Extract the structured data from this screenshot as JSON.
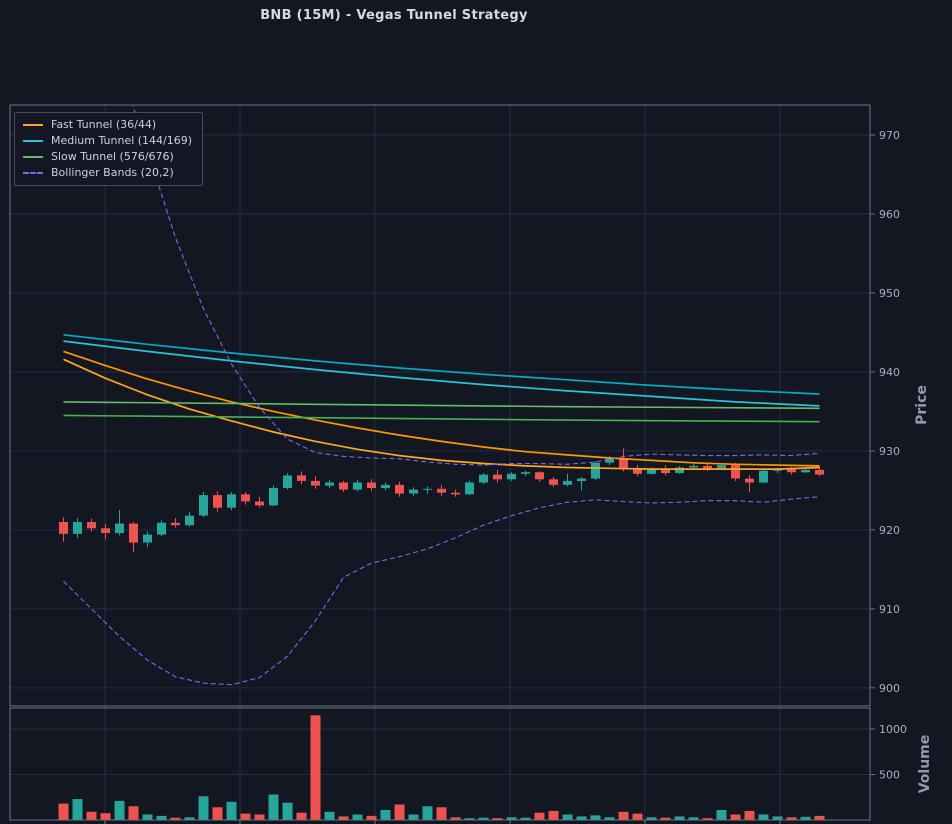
{
  "title": "BNB (15M) - Vegas Tunnel Strategy",
  "colors": {
    "background": "#131722",
    "up": "#26a69a",
    "down": "#ef5350",
    "grid": "#232c3d",
    "frame": "#6e7482",
    "tick_text": "#a9aeba",
    "title_text": "#d6dae4",
    "axis_title": "#939aab"
  },
  "legend": {
    "items": [
      {
        "label": "Fast Tunnel (36/44)",
        "color": "#ffa726",
        "dashed": false
      },
      {
        "label": "Medium Tunnel (144/169)",
        "color": "#26c6da",
        "dashed": false
      },
      {
        "label": "Slow Tunnel (576/676)",
        "color": "#66bb6a",
        "dashed": false
      },
      {
        "label": "Bollinger Bands (20,2)",
        "color": "#7c67e8",
        "dashed": true
      }
    ]
  },
  "axes": {
    "price": {
      "label": "Price",
      "ticks": [
        900,
        910,
        920,
        930,
        940,
        950,
        960,
        970
      ],
      "range": [
        897.7,
        973.8
      ]
    },
    "volume": {
      "label": "Volume",
      "ticks": [
        500,
        1000
      ],
      "range": [
        0,
        1230
      ]
    }
  },
  "chart_data": {
    "type": "candlestick",
    "title": "BNB (15M) - Vegas Tunnel Strategy",
    "symbol": "BNB",
    "interval": "15M",
    "panels": [
      "price",
      "volume"
    ],
    "x_count": 55,
    "candles": [
      [
        921.0,
        921.6,
        918.5,
        919.5
      ],
      [
        919.5,
        921.5,
        919.0,
        921.0
      ],
      [
        921.0,
        921.4,
        919.8,
        920.2
      ],
      [
        920.2,
        920.8,
        918.8,
        919.6
      ],
      [
        919.6,
        922.5,
        919.3,
        920.8
      ],
      [
        920.8,
        921.0,
        917.2,
        918.4
      ],
      [
        918.4,
        919.8,
        917.8,
        919.4
      ],
      [
        919.4,
        921.2,
        919.2,
        920.9
      ],
      [
        920.9,
        921.5,
        920.3,
        920.6
      ],
      [
        920.6,
        922.3,
        920.4,
        921.8
      ],
      [
        921.8,
        924.8,
        921.6,
        924.4
      ],
      [
        924.4,
        924.9,
        922.3,
        922.8
      ],
      [
        922.8,
        924.8,
        922.5,
        924.5
      ],
      [
        924.5,
        924.8,
        923.2,
        923.6
      ],
      [
        923.6,
        924.2,
        922.8,
        923.1
      ],
      [
        923.1,
        925.6,
        923.0,
        925.3
      ],
      [
        925.3,
        927.2,
        925.1,
        926.9
      ],
      [
        926.9,
        927.4,
        925.8,
        926.2
      ],
      [
        926.2,
        926.8,
        925.2,
        925.6
      ],
      [
        925.6,
        926.3,
        925.3,
        926.0
      ],
      [
        926.0,
        926.2,
        924.8,
        925.1
      ],
      [
        925.1,
        926.3,
        924.9,
        926.0
      ],
      [
        926.0,
        926.4,
        924.9,
        925.3
      ],
      [
        925.3,
        926.0,
        925.0,
        925.7
      ],
      [
        925.7,
        926.1,
        924.2,
        924.6
      ],
      [
        924.6,
        925.4,
        924.3,
        925.1
      ],
      [
        925.1,
        925.5,
        924.6,
        925.2
      ],
      [
        925.2,
        925.7,
        924.3,
        924.7
      ],
      [
        924.7,
        925.1,
        924.2,
        924.5
      ],
      [
        924.5,
        926.2,
        924.4,
        926.0
      ],
      [
        926.0,
        927.2,
        925.8,
        927.0
      ],
      [
        927.0,
        927.6,
        926.0,
        926.4
      ],
      [
        926.4,
        927.3,
        926.2,
        927.1
      ],
      [
        927.1,
        927.5,
        926.8,
        927.3
      ],
      [
        927.3,
        927.4,
        926.1,
        926.4
      ],
      [
        926.4,
        926.7,
        925.4,
        925.7
      ],
      [
        925.7,
        927.1,
        925.5,
        926.2
      ],
      [
        926.2,
        926.7,
        925.0,
        926.5
      ],
      [
        926.5,
        928.7,
        926.3,
        928.5
      ],
      [
        928.5,
        929.3,
        928.2,
        929.0
      ],
      [
        929.0,
        930.3,
        927.4,
        927.7
      ],
      [
        927.7,
        928.2,
        926.8,
        927.1
      ],
      [
        927.1,
        927.9,
        927.0,
        927.6
      ],
      [
        927.6,
        928.2,
        926.9,
        927.2
      ],
      [
        927.2,
        928.1,
        927.1,
        927.9
      ],
      [
        927.9,
        928.4,
        927.6,
        928.1
      ],
      [
        928.1,
        928.5,
        927.5,
        927.8
      ],
      [
        927.8,
        928.4,
        927.6,
        928.2
      ],
      [
        928.2,
        928.5,
        926.2,
        926.5
      ],
      [
        926.5,
        926.9,
        924.8,
        926.0
      ],
      [
        926.0,
        927.7,
        925.9,
        927.5
      ],
      [
        927.5,
        927.9,
        927.2,
        927.7
      ],
      [
        927.7,
        928.0,
        927.0,
        927.3
      ],
      [
        927.3,
        927.9,
        927.2,
        927.6
      ],
      [
        927.6,
        928.0,
        926.8,
        927.0
      ]
    ],
    "volumes": [
      180,
      230,
      90,
      75,
      210,
      150,
      60,
      45,
      25,
      30,
      260,
      140,
      200,
      70,
      60,
      280,
      190,
      80,
      1150,
      90,
      40,
      60,
      45,
      110,
      170,
      60,
      150,
      140,
      30,
      20,
      25,
      20,
      30,
      25,
      80,
      100,
      60,
      40,
      50,
      30,
      90,
      70,
      30,
      25,
      40,
      30,
      20,
      110,
      60,
      100,
      60,
      40,
      30,
      35,
      45
    ],
    "series": [
      {
        "id": "fast-tunnel-ema36",
        "name": "Fast Tunnel EMA 36",
        "color": "#ffa726",
        "width": 1.7,
        "dashed": false,
        "points": [
          [
            0,
            941.6
          ],
          [
            3,
            939.2
          ],
          [
            6,
            937.1
          ],
          [
            9,
            935.3
          ],
          [
            12,
            933.8
          ],
          [
            15,
            932.4
          ],
          [
            18,
            931.2
          ],
          [
            21,
            930.2
          ],
          [
            24,
            929.4
          ],
          [
            27,
            928.8
          ],
          [
            30,
            928.4
          ],
          [
            33,
            928.1
          ],
          [
            36,
            927.9
          ],
          [
            39,
            927.8
          ],
          [
            42,
            927.7
          ],
          [
            45,
            927.7
          ],
          [
            48,
            927.7
          ],
          [
            51,
            927.7
          ],
          [
            54,
            927.9
          ]
        ]
      },
      {
        "id": "fast-tunnel-ema44",
        "name": "Fast Tunnel EMA 44",
        "color": "#ff9800",
        "width": 1.7,
        "dashed": false,
        "points": [
          [
            0,
            942.6
          ],
          [
            3,
            940.8
          ],
          [
            6,
            939.1
          ],
          [
            9,
            937.6
          ],
          [
            12,
            936.2
          ],
          [
            15,
            935.0
          ],
          [
            18,
            933.9
          ],
          [
            21,
            932.9
          ],
          [
            24,
            932.0
          ],
          [
            27,
            931.2
          ],
          [
            30,
            930.5
          ],
          [
            33,
            929.9
          ],
          [
            36,
            929.5
          ],
          [
            39,
            929.1
          ],
          [
            42,
            928.8
          ],
          [
            45,
            928.5
          ],
          [
            48,
            928.3
          ],
          [
            51,
            928.2
          ],
          [
            54,
            928.1
          ]
        ]
      },
      {
        "id": "medium-tunnel-ema144",
        "name": "Medium Tunnel EMA 144",
        "color": "#26c6da",
        "width": 1.7,
        "dashed": false,
        "points": [
          [
            0,
            943.9
          ],
          [
            6,
            942.6
          ],
          [
            12,
            941.4
          ],
          [
            18,
            940.3
          ],
          [
            24,
            939.3
          ],
          [
            30,
            938.4
          ],
          [
            36,
            937.6
          ],
          [
            42,
            936.9
          ],
          [
            48,
            936.2
          ],
          [
            54,
            935.7
          ]
        ]
      },
      {
        "id": "medium-tunnel-ema169",
        "name": "Medium Tunnel EMA 169",
        "color": "#00acc1",
        "width": 1.7,
        "dashed": false,
        "points": [
          [
            0,
            944.7
          ],
          [
            6,
            943.5
          ],
          [
            12,
            942.4
          ],
          [
            18,
            941.4
          ],
          [
            24,
            940.5
          ],
          [
            30,
            939.7
          ],
          [
            36,
            939.0
          ],
          [
            42,
            938.3
          ],
          [
            48,
            937.7
          ],
          [
            54,
            937.2
          ]
        ]
      },
      {
        "id": "slow-tunnel-ema576",
        "name": "Slow Tunnel EMA 576",
        "color": "#66bb6a",
        "width": 1.6,
        "dashed": false,
        "points": [
          [
            0,
            936.2
          ],
          [
            18,
            935.9
          ],
          [
            36,
            935.6
          ],
          [
            54,
            935.4
          ]
        ]
      },
      {
        "id": "slow-tunnel-ema676",
        "name": "Slow Tunnel EMA 676",
        "color": "#4caf50",
        "width": 1.6,
        "dashed": false,
        "points": [
          [
            0,
            934.5
          ],
          [
            18,
            934.2
          ],
          [
            36,
            933.9
          ],
          [
            54,
            933.7
          ]
        ]
      },
      {
        "id": "bollinger-upper",
        "name": "Bollinger Upper (20,2)",
        "color": "#7c67e8",
        "width": 1.1,
        "dashed": true,
        "points": [
          [
            4,
            979
          ],
          [
            6,
            968
          ],
          [
            8,
            957
          ],
          [
            10,
            948
          ],
          [
            12,
            941
          ],
          [
            14,
            935.5
          ],
          [
            16,
            931.5
          ],
          [
            18,
            929.8
          ],
          [
            20,
            929.3
          ],
          [
            22,
            929.1
          ],
          [
            24,
            929.0
          ],
          [
            26,
            928.6
          ],
          [
            28,
            928.3
          ],
          [
            30,
            928.2
          ],
          [
            32,
            928.4
          ],
          [
            34,
            928.4
          ],
          [
            36,
            928.3
          ],
          [
            38,
            928.6
          ],
          [
            40,
            929.3
          ],
          [
            42,
            929.6
          ],
          [
            44,
            929.5
          ],
          [
            46,
            929.4
          ],
          [
            48,
            929.4
          ],
          [
            50,
            929.5
          ],
          [
            52,
            929.4
          ],
          [
            54,
            929.7
          ]
        ]
      },
      {
        "id": "bollinger-lower",
        "name": "Bollinger Lower (20,2)",
        "color": "#7c67e8",
        "width": 1.1,
        "dashed": true,
        "points": [
          [
            0,
            913.5
          ],
          [
            2,
            910.0
          ],
          [
            4,
            906.5
          ],
          [
            6,
            903.5
          ],
          [
            8,
            901.4
          ],
          [
            10,
            900.6
          ],
          [
            12,
            900.4
          ],
          [
            14,
            901.3
          ],
          [
            16,
            904.0
          ],
          [
            18,
            908.5
          ],
          [
            20,
            914.0
          ],
          [
            22,
            915.8
          ],
          [
            24,
            916.6
          ],
          [
            26,
            917.6
          ],
          [
            28,
            919.0
          ],
          [
            30,
            920.6
          ],
          [
            32,
            921.8
          ],
          [
            34,
            922.8
          ],
          [
            36,
            923.5
          ],
          [
            38,
            923.8
          ],
          [
            40,
            923.6
          ],
          [
            42,
            923.4
          ],
          [
            44,
            923.5
          ],
          [
            46,
            923.7
          ],
          [
            48,
            923.7
          ],
          [
            50,
            923.5
          ],
          [
            52,
            923.9
          ],
          [
            54,
            924.2
          ]
        ]
      }
    ]
  }
}
